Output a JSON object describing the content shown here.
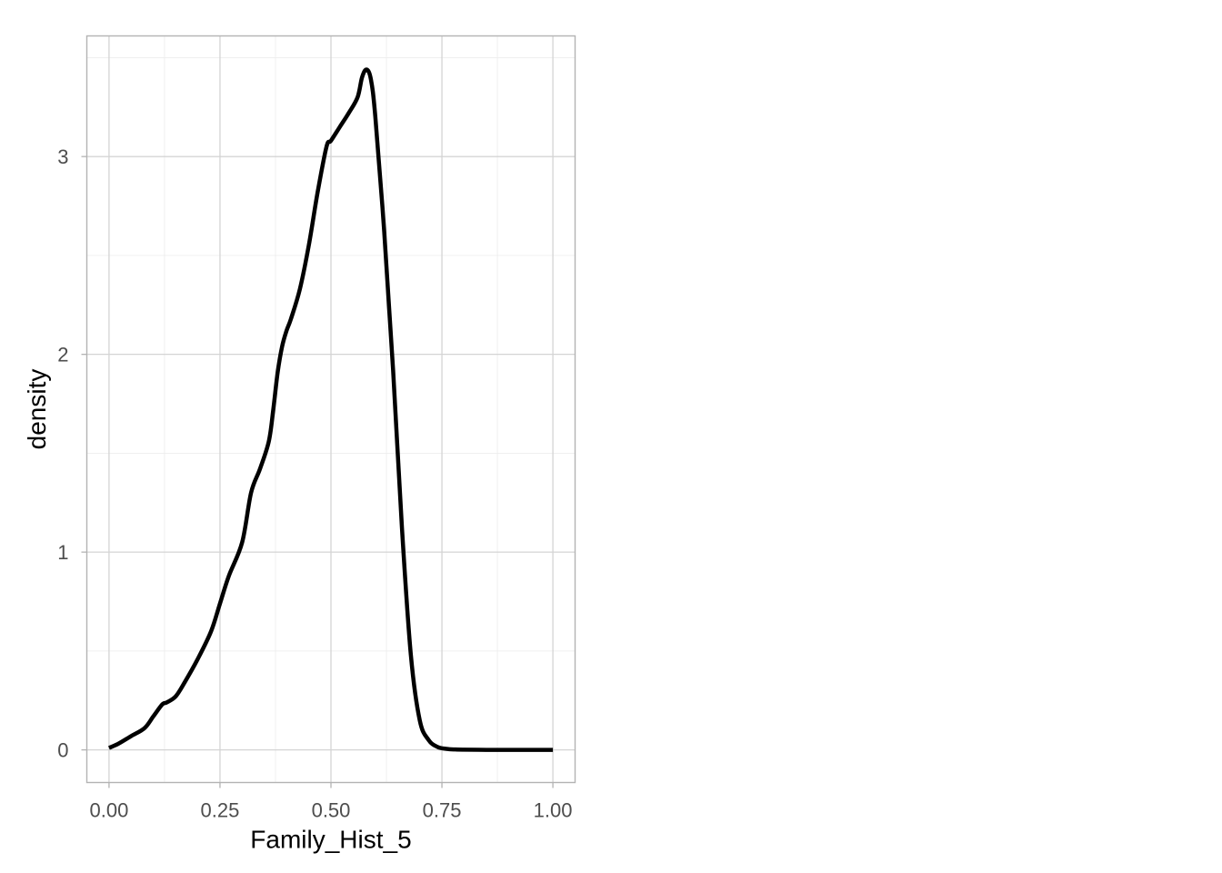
{
  "chart_data": {
    "type": "line",
    "title": "",
    "xlabel": "Family_Hist_5",
    "ylabel": "density",
    "xlim": [
      -0.05,
      1.05
    ],
    "ylim": [
      -0.165,
      3.61
    ],
    "x_ticks": [
      0.0,
      0.25,
      0.5,
      0.75,
      1.0
    ],
    "x_tick_labels": [
      "0.00",
      "0.25",
      "0.50",
      "0.75",
      "1.00"
    ],
    "x_minor_ticks": [
      0.125,
      0.375,
      0.625,
      0.875
    ],
    "y_ticks": [
      0,
      1,
      2,
      3
    ],
    "y_tick_labels": [
      "0",
      "1",
      "2",
      "3"
    ],
    "y_minor_ticks": [
      0.5,
      1.5,
      2.5,
      3.5
    ],
    "grid": true,
    "legend": "none",
    "series": [
      {
        "color": "#000000",
        "x": [
          0.0,
          0.02,
          0.05,
          0.08,
          0.1,
          0.12,
          0.13,
          0.15,
          0.17,
          0.2,
          0.23,
          0.25,
          0.27,
          0.3,
          0.32,
          0.34,
          0.36,
          0.37,
          0.38,
          0.39,
          0.4,
          0.41,
          0.43,
          0.45,
          0.47,
          0.49,
          0.5,
          0.52,
          0.54,
          0.56,
          0.57,
          0.58,
          0.59,
          0.6,
          0.62,
          0.64,
          0.66,
          0.68,
          0.7,
          0.72,
          0.74,
          0.76,
          0.78,
          0.8,
          0.85,
          0.9,
          0.95,
          1.0
        ],
        "y": [
          0.01,
          0.03,
          0.07,
          0.11,
          0.17,
          0.23,
          0.24,
          0.27,
          0.34,
          0.46,
          0.6,
          0.74,
          0.88,
          1.05,
          1.3,
          1.42,
          1.56,
          1.72,
          1.91,
          2.04,
          2.12,
          2.18,
          2.33,
          2.55,
          2.82,
          3.05,
          3.08,
          3.15,
          3.22,
          3.3,
          3.4,
          3.44,
          3.39,
          3.2,
          2.62,
          1.92,
          1.12,
          0.48,
          0.15,
          0.05,
          0.015,
          0.005,
          0.002,
          0.001,
          0.0,
          0.0,
          0.0,
          0.0
        ]
      }
    ]
  }
}
